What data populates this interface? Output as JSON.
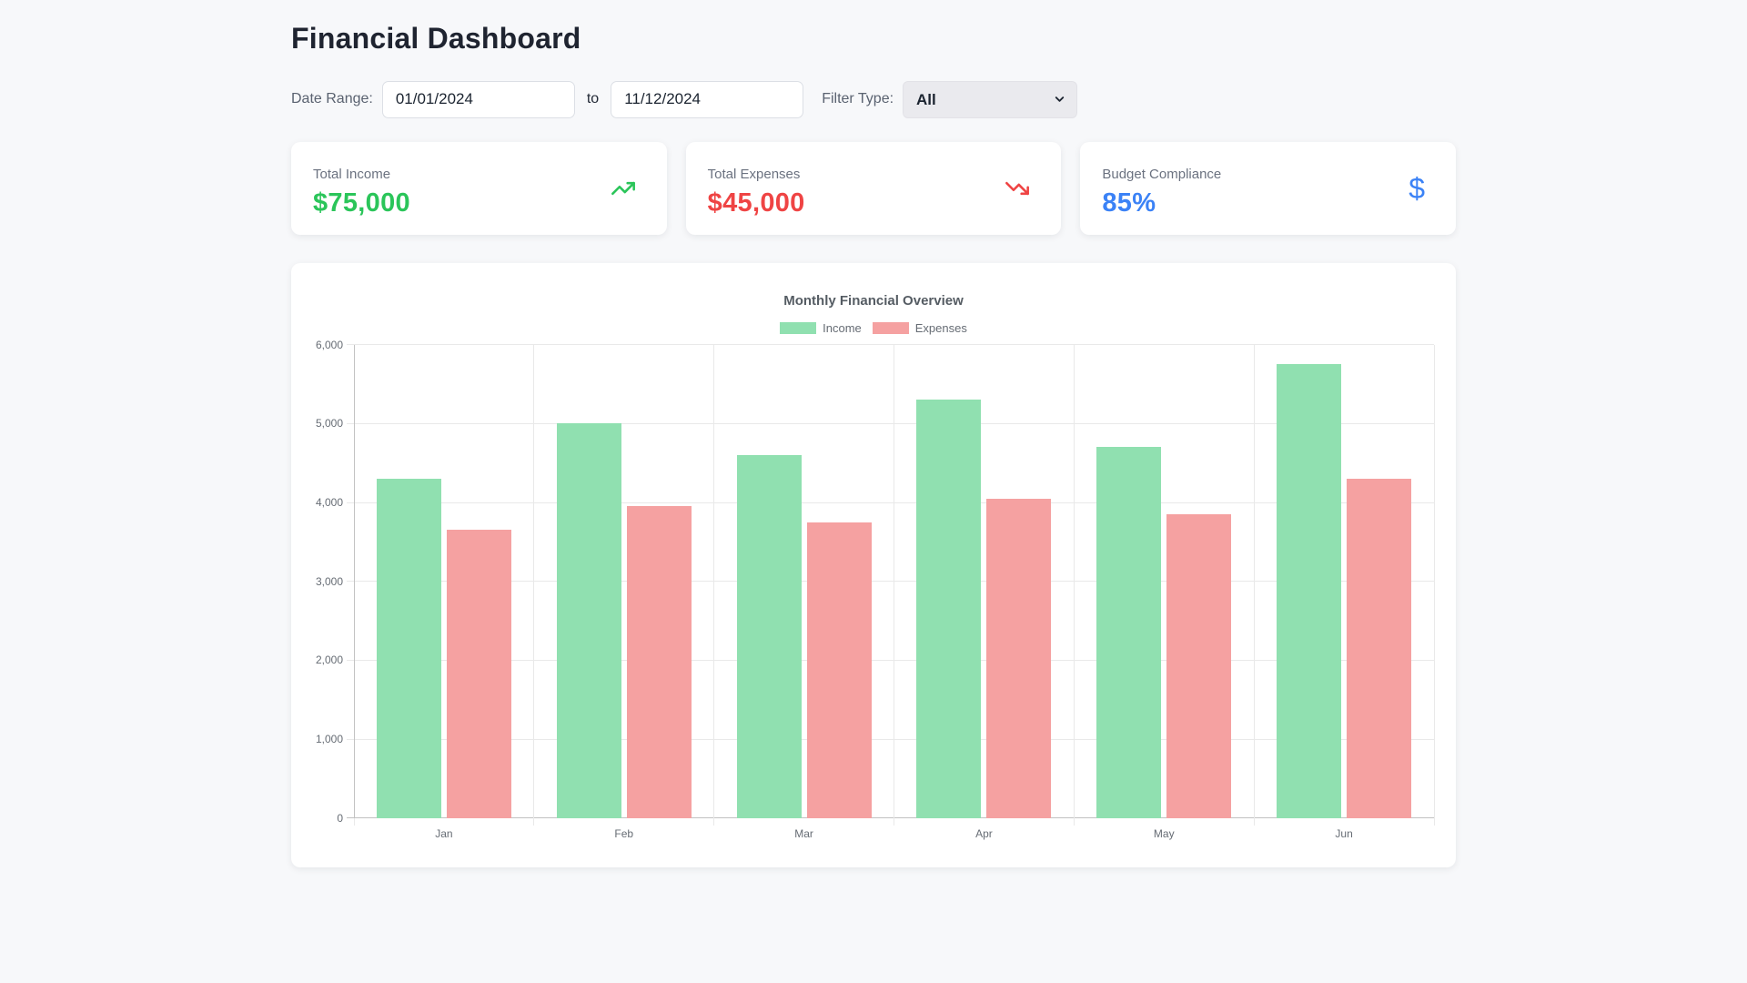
{
  "page": {
    "title": "Financial Dashboard",
    "background_color": "#f7f8fa"
  },
  "filters": {
    "date_range_label": "Date Range:",
    "start_date": "01/01/2024",
    "to_label": "to",
    "end_date": "11/12/2024",
    "filter_type_label": "Filter Type:",
    "filter_selected": "All"
  },
  "summary_cards": [
    {
      "label": "Total Income",
      "value": "$75,000",
      "color": "#2bc55a",
      "icon": "trending-up-icon"
    },
    {
      "label": "Total Expenses",
      "value": "$45,000",
      "color": "#ef4444",
      "icon": "trending-down-icon"
    },
    {
      "label": "Budget Compliance",
      "value": "85%",
      "color": "#3b82f6",
      "icon": "dollar-sign-icon"
    }
  ],
  "chart_data": {
    "type": "bar",
    "title": "Monthly Financial Overview",
    "categories": [
      "Jan",
      "Feb",
      "Mar",
      "Apr",
      "May",
      "Jun"
    ],
    "series": [
      {
        "name": "Income",
        "color": "#90e0b0",
        "values": [
          4300,
          5000,
          4600,
          5300,
          4700,
          5750
        ]
      },
      {
        "name": "Expenses",
        "color": "#f5a1a1",
        "values": [
          3650,
          3950,
          3750,
          4050,
          3850,
          4300
        ]
      }
    ],
    "ylim": [
      0,
      6000
    ],
    "ytick_step": 1000,
    "grid": true,
    "legend_position": "top",
    "axis_text_color": "#666c74",
    "grid_color": "#e9e9e9",
    "zero_line_color": "#c2c2c2"
  }
}
